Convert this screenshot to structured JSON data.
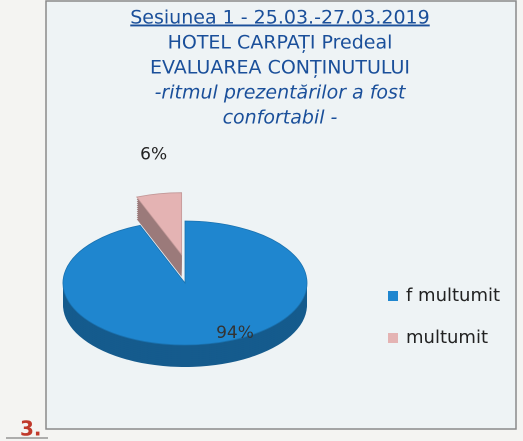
{
  "label": "3.",
  "chart_data": {
    "type": "pie",
    "title": [
      "Sesiunea 1 - 25.03.-27.03.2019",
      "HOTEL CARPAȚI Predeal",
      "EVALUAREA CONȚINUTULUI"
    ],
    "subtitle": [
      "-ritmul prezentărilor a fost",
      "confortabil -"
    ],
    "categories": [
      "f multumit",
      "multumit"
    ],
    "values": [
      94,
      6
    ],
    "value_labels": [
      "94%",
      "6%"
    ],
    "colors": [
      "#1f86cf",
      "#e4b3b3"
    ],
    "legend": "right"
  }
}
